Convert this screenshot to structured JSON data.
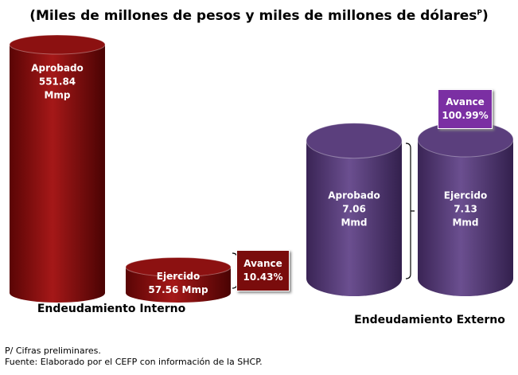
{
  "title": "(Miles de millones de pesos y miles de millones de dólares",
  "title_sup": "P",
  "title_end": ")",
  "chart_data": [
    {
      "type": "bar",
      "xlabel": "Endeudamiento Interno",
      "categories": [
        "Aprobado",
        "Ejercido"
      ],
      "values": [
        551.84,
        57.56
      ],
      "value_labels": [
        "551.84\nMmp",
        "57.56 Mmp"
      ],
      "color": "#8c1111",
      "annotation": {
        "text": "Avance",
        "value": 10.43,
        "value_label": "10.43%"
      }
    },
    {
      "type": "bar",
      "xlabel": "Endeudamiento Externo",
      "categories": [
        "Aprobado",
        "Ejercido"
      ],
      "values": [
        7.06,
        7.13
      ],
      "value_labels": [
        "7.06\nMmd",
        "7.13 Mmd"
      ],
      "color": "#5b3f7d",
      "annotation": {
        "text": "Avance",
        "value": 100.99,
        "value_label": "100.99%"
      }
    }
  ],
  "notes": [
    "P/ Cifras preliminares.",
    "Fuente: Elaborado por el CEFP con información de la SHCP."
  ]
}
